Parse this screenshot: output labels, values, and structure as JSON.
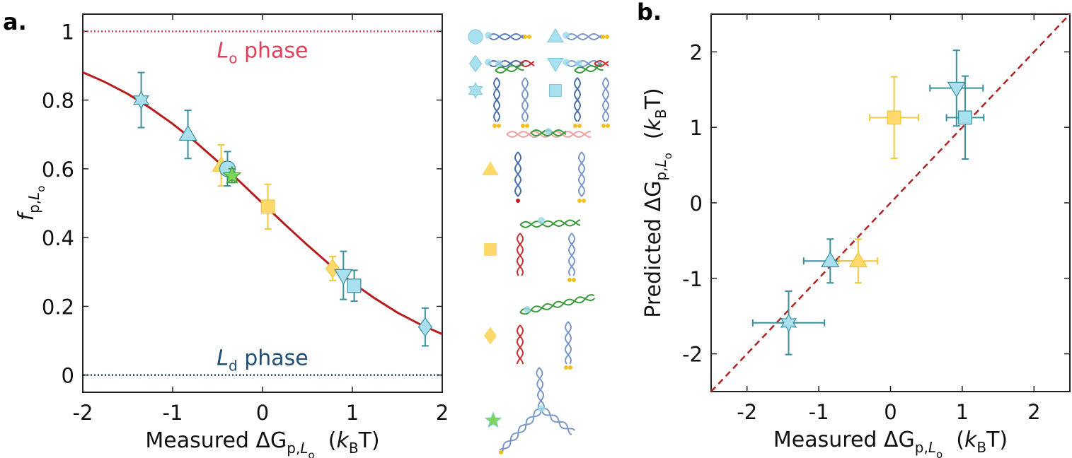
{
  "chart_data": [
    {
      "type": "scatter",
      "panel_label": "a.",
      "x_label": [
        {
          "text": "Measured ΔG"
        },
        {
          "text": "p,",
          "sub": 1
        },
        {
          "text": "L",
          "sub": 1,
          "italic": true
        },
        {
          "text": "o",
          "sub": 2
        },
        {
          "text": "  ("
        },
        {
          "text": "k",
          "italic": true
        },
        {
          "text": "B",
          "sub": 1
        },
        {
          "text": "T)"
        }
      ],
      "y_label": [
        {
          "text": "f",
          "italic": true
        },
        {
          "text": "p,",
          "sub": 1
        },
        {
          "text": "L",
          "sub": 1,
          "italic": true
        },
        {
          "text": "o",
          "sub": 2
        }
      ],
      "xlim": [
        -2,
        2
      ],
      "xticks": [
        -2,
        -1,
        0,
        1,
        2
      ],
      "ylim": [
        -0.05,
        1.05
      ],
      "yticks": [
        0,
        0.2,
        0.4,
        0.6,
        0.8,
        1
      ],
      "curve": {
        "color": "#b81c1c",
        "x": [
          -2,
          -1.75,
          -1.5,
          -1.25,
          -1,
          -0.75,
          -0.5,
          -0.25,
          0,
          0.25,
          0.5,
          0.75,
          1,
          1.25,
          1.5,
          1.75,
          2
        ],
        "y": [
          0.881,
          0.852,
          0.818,
          0.777,
          0.731,
          0.679,
          0.622,
          0.562,
          0.5,
          0.438,
          0.378,
          0.321,
          0.269,
          0.223,
          0.182,
          0.148,
          0.119
        ]
      },
      "hlines": [
        {
          "value": 1,
          "color": "#e0405a",
          "label": [
            {
              "text": "L",
              "italic": true
            },
            {
              "text": "o",
              "sub": 1
            },
            {
              "text": " phase"
            }
          ]
        },
        {
          "value": 0,
          "color": "#1f4e79",
          "label": [
            {
              "text": "L",
              "italic": true
            },
            {
              "text": "d",
              "sub": 1
            },
            {
              "text": " phase"
            }
          ]
        }
      ],
      "points": [
        {
          "marker": "hexagram",
          "color": "#a8e0f0",
          "edge": "#3a8f9c",
          "x": -1.35,
          "y": 0.8,
          "yerr": 0.08
        },
        {
          "marker": "triangle-up",
          "color": "#a8e0f0",
          "edge": "#3a8f9c",
          "x": -0.83,
          "y": 0.7,
          "yerr": 0.07
        },
        {
          "marker": "triangle-up",
          "color": "#fcd96a",
          "edge": "#f0c840",
          "x": -0.46,
          "y": 0.61,
          "yerr": 0.06
        },
        {
          "marker": "circle",
          "color": "#a8e0f0",
          "edge": "#3a8f9c",
          "x": -0.39,
          "y": 0.6,
          "yerr": 0.05
        },
        {
          "marker": "star",
          "color": "#7cd65a",
          "edge": "#3a9a3a",
          "x": -0.34,
          "y": 0.58,
          "yerr": 0.02
        },
        {
          "marker": "square",
          "color": "#fcd96a",
          "edge": "#f0c840",
          "x": 0.06,
          "y": 0.49,
          "yerr": 0.065
        },
        {
          "marker": "diamond",
          "color": "#fcd96a",
          "edge": "#f0c840",
          "x": 0.78,
          "y": 0.31,
          "yerr": 0.035
        },
        {
          "marker": "triangle-down",
          "color": "#a8e0f0",
          "edge": "#3a8f9c",
          "x": 0.9,
          "y": 0.29,
          "yerr": 0.07
        },
        {
          "marker": "square",
          "color": "#a8e0f0",
          "edge": "#3a8f9c",
          "x": 1.02,
          "y": 0.26,
          "yerr": 0.045
        },
        {
          "marker": "diamond",
          "color": "#a8e0f0",
          "edge": "#3a8f9c",
          "x": 1.81,
          "y": 0.14,
          "yerr": 0.055
        }
      ]
    },
    {
      "type": "scatter",
      "panel_label": "b.",
      "x_label": [
        {
          "text": "Measured ΔG"
        },
        {
          "text": "p,",
          "sub": 1
        },
        {
          "text": "L",
          "sub": 1,
          "italic": true
        },
        {
          "text": "o",
          "sub": 2
        },
        {
          "text": "  ("
        },
        {
          "text": "k",
          "italic": true
        },
        {
          "text": "B",
          "sub": 1
        },
        {
          "text": "T)"
        }
      ],
      "y_label": [
        {
          "text": "Predicted ΔG"
        },
        {
          "text": "p,",
          "sub": 1
        },
        {
          "text": "L",
          "sub": 1,
          "italic": true
        },
        {
          "text": "o",
          "sub": 2
        },
        {
          "text": "  ("
        },
        {
          "text": "k",
          "italic": true
        },
        {
          "text": "B",
          "sub": 1
        },
        {
          "text": "T)"
        }
      ],
      "xlim": [
        -2.5,
        2.5
      ],
      "xticks": [
        -2,
        -1,
        0,
        1,
        2
      ],
      "ylim": [
        -2.5,
        2.5
      ],
      "yticks": [
        -2,
        -1,
        0,
        1,
        2
      ],
      "reference_line": {
        "color": "#b22222",
        "x": [
          -2.5,
          2.5
        ],
        "y": [
          -2.5,
          2.5
        ]
      },
      "points": [
        {
          "marker": "hexagram",
          "color": "#a8e0f0",
          "edge": "#3a8f9c",
          "x": -1.42,
          "y": -1.59,
          "xerr": 0.5,
          "yerr": 0.42
        },
        {
          "marker": "triangle-up",
          "color": "#a8e0f0",
          "edge": "#3a8f9c",
          "x": -0.84,
          "y": -0.77,
          "xerr": 0.37,
          "yerr": 0.29
        },
        {
          "marker": "triangle-up",
          "color": "#fcd96a",
          "edge": "#f0c840",
          "x": -0.45,
          "y": -0.77,
          "xerr": 0.27,
          "yerr": 0.29
        },
        {
          "marker": "square",
          "color": "#fcd96a",
          "edge": "#f0c840",
          "x": 0.05,
          "y": 1.13,
          "xerr": 0.34,
          "yerr": 0.54
        },
        {
          "marker": "triangle-down",
          "color": "#a8e0f0",
          "edge": "#3a8f9c",
          "x": 0.92,
          "y": 1.52,
          "xerr": 0.37,
          "yerr": 0.5
        },
        {
          "marker": "square",
          "color": "#a8e0f0",
          "edge": "#3a8f9c",
          "x": 1.04,
          "y": 1.13,
          "xerr": 0.26,
          "yerr": 0.55
        }
      ]
    }
  ]
}
